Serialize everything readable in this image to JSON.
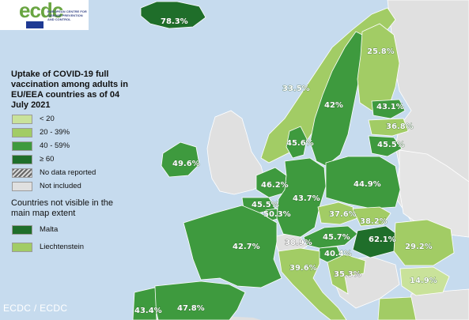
{
  "logo": {
    "wordmark": "ecdc",
    "subtitle": "EUROPEAN CENTRE FOR DISEASE PREVENTION AND CONTROL"
  },
  "title": "Uptake of COVID-19 full vaccination among adults in EU/EEA countries as of 04 July 2021",
  "legend": [
    {
      "label": "< 20",
      "color": "#c9e29a"
    },
    {
      "label": "20 - 39%",
      "color": "#a2cc65"
    },
    {
      "label": "40 - 59%",
      "color": "#3e9a3e"
    },
    {
      "label": "≥ 60",
      "color": "#1f6e2a"
    },
    {
      "label": "No data reported",
      "color": "hatched"
    },
    {
      "label": "Not included",
      "color": "#e0e0e0"
    }
  ],
  "not_visible": {
    "heading": "Countries not visible in the main map extent",
    "items": [
      {
        "label": "Malta",
        "color": "#1f6e2a"
      },
      {
        "label": "Liechtenstein",
        "color": "#a2cc65"
      }
    ]
  },
  "countries": {
    "iceland": "78.3%",
    "norway_finland": "25.8%",
    "sweden_north": "33.5%",
    "sweden": "42%",
    "estonia": "43.1%",
    "latvia": "36.8%",
    "lithuania": "45.5%",
    "denmark": "45.6%",
    "ireland": "49.6%",
    "netherlands": "46.2%",
    "germany": "43.7%",
    "poland": "44.9%",
    "belgium": "45.5%",
    "luxembourg": "50.3%",
    "czechia": "37.6%",
    "slovakia": "38.2%",
    "austria": "45.7%",
    "hungary": "62.1%",
    "france": "42.7%",
    "liechtenstein_label": "38.9%",
    "slovenia": "40.4%",
    "croatia": "35.3%",
    "romania": "29.2%",
    "italy": "39.6%",
    "bulgaria": "14.9%",
    "portugal": "43.4%",
    "spain": "47.8%"
  },
  "colors": {
    "sea": "#c6dbee",
    "not_included": "#e0e0e0",
    "lt20": "#c9e29a",
    "c20_39": "#a2cc65",
    "c40_59": "#3e9a3e",
    "c60": "#1f6e2a"
  },
  "credit": "ECDC / ECDC"
}
